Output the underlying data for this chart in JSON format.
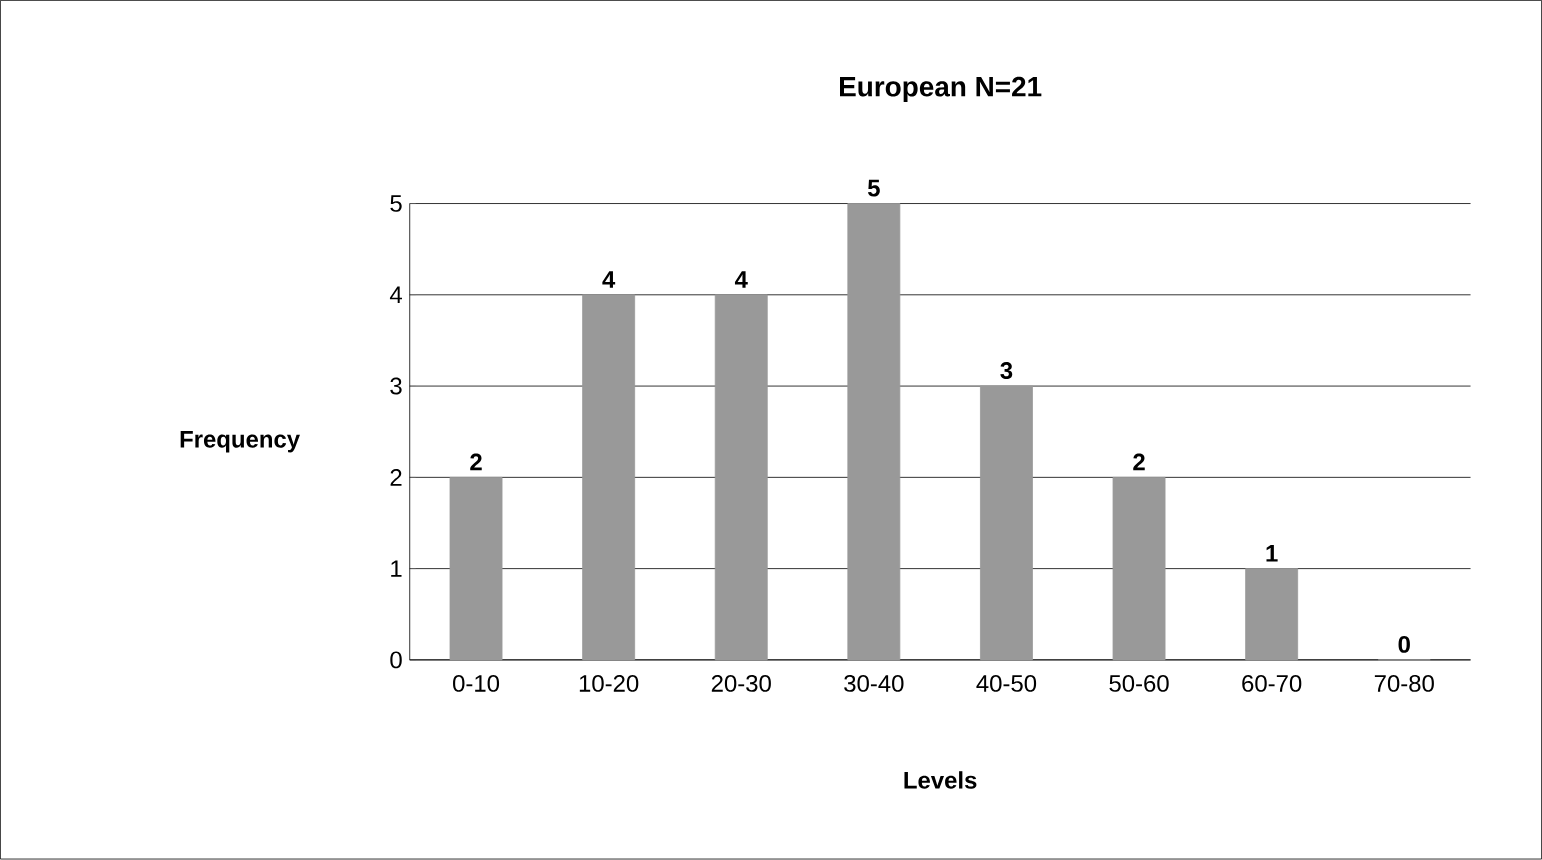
{
  "chart_data": {
    "type": "bar",
    "title": "European N=21",
    "xlabel": "Levels",
    "ylabel": "Frequency",
    "categories": [
      "0-10",
      "10-20",
      "20-30",
      "30-40",
      "40-50",
      "50-60",
      "60-70",
      "70-80"
    ],
    "values": [
      2,
      4,
      4,
      5,
      3,
      2,
      1,
      0
    ],
    "color": "#999999",
    "ylim": [
      0,
      5
    ],
    "yticks": [
      0,
      1,
      2,
      3,
      4,
      5
    ],
    "grid": "y",
    "data_labels": true
  }
}
